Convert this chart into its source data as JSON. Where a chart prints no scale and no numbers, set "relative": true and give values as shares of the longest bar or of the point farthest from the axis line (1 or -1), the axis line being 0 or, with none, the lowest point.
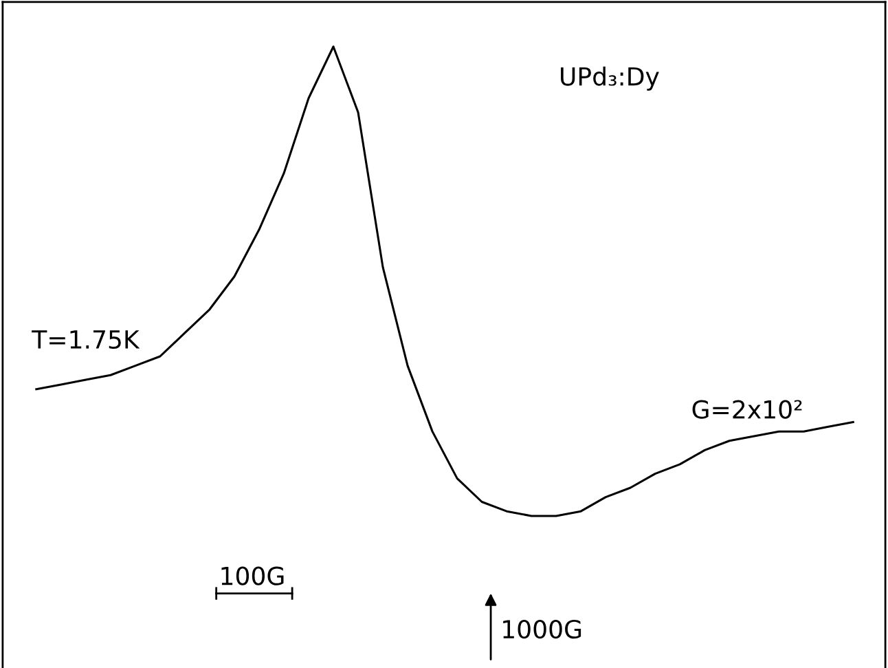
{
  "chart_data": {
    "type": "line",
    "relative": true,
    "color": "#000000",
    "marker": "none",
    "line_style": "solid",
    "legend": false,
    "categories": [
      null,
      null,
      null,
      null,
      null,
      null,
      null,
      null,
      null,
      null,
      null,
      null,
      null,
      null,
      null,
      null,
      null,
      null,
      null,
      null,
      null,
      null,
      null,
      null,
      null,
      null,
      null,
      null,
      null,
      null,
      null,
      null,
      null,
      null
    ],
    "values": [
      0.27,
      0.28,
      0.29,
      0.3,
      0.32,
      0.34,
      0.39,
      0.44,
      0.51,
      0.61,
      0.73,
      0.89,
      1,
      0.86,
      0.53,
      0.32,
      0.18,
      0.08,
      0.03,
      0.01,
      0,
      0.0,
      0.01,
      0.04,
      0.06,
      0.09,
      0.11,
      0.14,
      0.16,
      0.17,
      0.18,
      0.18,
      0.19,
      0.2
    ],
    "annotations": [
      "UPd₃:Dy",
      "T=1.75K",
      "G=2x10²",
      "100G",
      "1000G"
    ]
  }
}
